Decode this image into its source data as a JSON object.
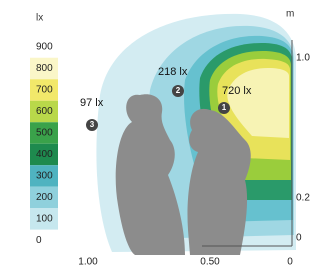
{
  "legend": {
    "unit": "lx",
    "levels": [
      "900",
      "800",
      "700",
      "600",
      "500",
      "400",
      "300",
      "200",
      "100",
      "0"
    ]
  },
  "right_axis": {
    "unit": "m",
    "labels": [
      "1.0",
      "0.2",
      "0"
    ]
  },
  "bottom_axis": {
    "labels": [
      "1.00",
      "0.50",
      "0"
    ]
  },
  "callouts": [
    {
      "value": "720 lx",
      "number": "1"
    },
    {
      "value": "218 lx",
      "number": "2"
    },
    {
      "value": "97 lx",
      "number": "3"
    }
  ]
}
